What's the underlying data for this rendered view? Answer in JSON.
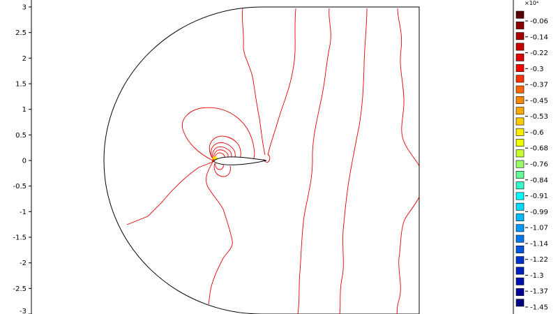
{
  "chart_data": {
    "type": "contour",
    "title": "",
    "xlabel": "",
    "ylabel": "",
    "y_ticks": [
      "3",
      "2.5",
      "2",
      "1.5",
      "1",
      "0.5",
      "0",
      "-0.5",
      "-1",
      "-1.5",
      "-2",
      "-2.5",
      "-3"
    ],
    "y_values": [
      3,
      2.5,
      2,
      1.5,
      1,
      0.5,
      0,
      -0.5,
      -1,
      -1.5,
      -2,
      -2.5,
      -3
    ],
    "ylim": [
      -3,
      3
    ],
    "colorbar": {
      "exponent": "×10⁴",
      "labels": [
        "-0.06",
        "-0.14",
        "-0.22",
        "-0.3",
        "-0.37",
        "-0.45",
        "-0.53",
        "-0.6",
        "-0.68",
        "-0.76",
        "-0.84",
        "-0.91",
        "-0.99",
        "-1.07",
        "-1.14",
        "-1.22",
        "-1.3",
        "-1.37",
        "-1.45"
      ],
      "colors_top_to_bottom": [
        "#5a0000",
        "#8b0000",
        "#a80000",
        "#c80000",
        "#e00000",
        "#ff0000",
        "#ff3300",
        "#ff6600",
        "#ff8800",
        "#ffaa00",
        "#ffcc00",
        "#ffee00",
        "#eeff00",
        "#ccff33",
        "#99ff66",
        "#66ff99",
        "#33ffcc",
        "#00ffff",
        "#00ddff",
        "#00bbff",
        "#0099ff",
        "#0077ee",
        "#0055dd",
        "#0033cc",
        "#0022bb",
        "#0011aa",
        "#000099",
        "#000080"
      ]
    },
    "contour_color": "#e60000",
    "domain_edge_color": "#000000"
  }
}
